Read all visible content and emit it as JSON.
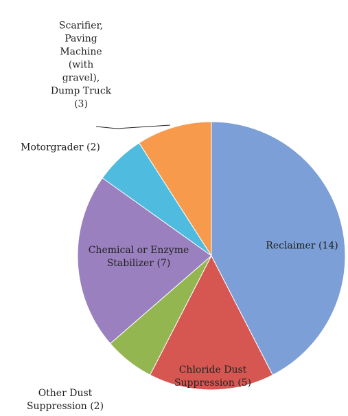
{
  "chart_data": {
    "type": "pie",
    "categories": [
      "Reclaimer",
      "Chloride Dust Suppression",
      "Other Dust Suppression",
      "Chemical or Enzyme Stabilizer",
      "Motorgrader",
      "Scarifier, Paving Machine (with gravel), Dump Truck"
    ],
    "values": [
      14,
      5,
      2,
      7,
      2,
      3
    ],
    "value_labels": [
      "(14)",
      "(5)",
      "(2)",
      "(7)",
      "(2)",
      "(3)"
    ],
    "colors": [
      "#7b9fd6",
      "#d65752",
      "#93b651",
      "#9a80bf",
      "#4fbbdf",
      "#f79a4c"
    ]
  }
}
